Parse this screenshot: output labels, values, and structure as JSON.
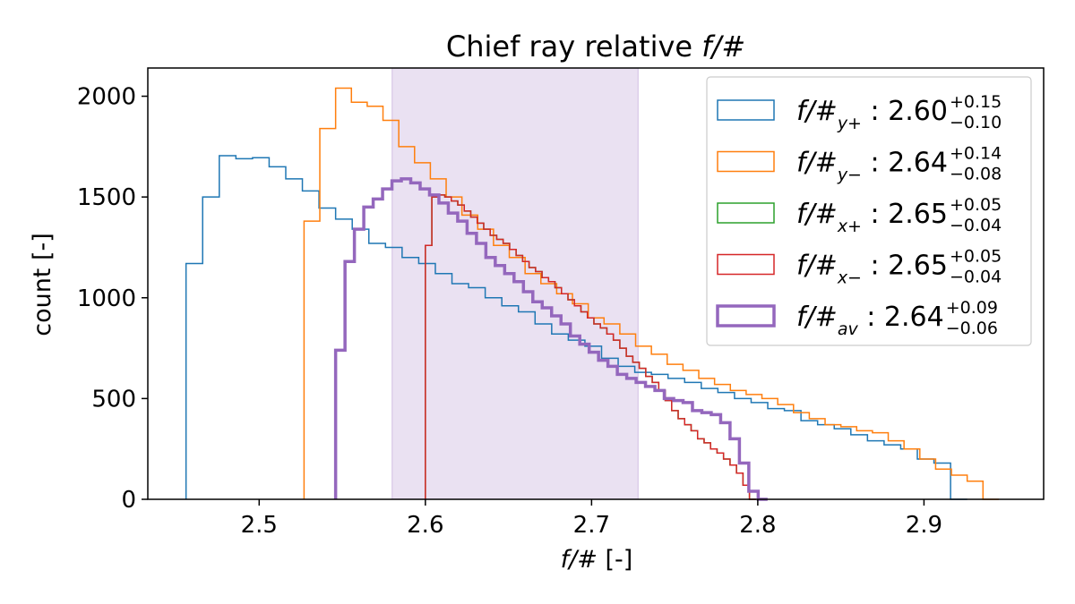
{
  "chart_data": {
    "type": "histogram",
    "title": "Chief ray relative f/#",
    "xlabel": "f/# [-]",
    "ylabel": "count [-]",
    "xlim": [
      2.433,
      2.972
    ],
    "ylim": [
      0,
      2140
    ],
    "xticks": [
      2.5,
      2.6,
      2.7,
      2.8,
      2.9
    ],
    "xtick_labels": [
      "2.5",
      "2.6",
      "2.7",
      "2.8",
      "2.9"
    ],
    "yticks": [
      0,
      500,
      1000,
      1500,
      2000
    ],
    "ytick_labels": [
      "0",
      "500",
      "1000",
      "1500",
      "2000"
    ],
    "grid": false,
    "legend_position": "top-right",
    "shaded_band": {
      "x0": 2.58,
      "x1": 2.728,
      "color": "#9467bd",
      "opacity": 0.2
    },
    "series": [
      {
        "name": "f/#y+",
        "base": "f/#",
        "sub": "y+",
        "value": "2.60",
        "plus": "+0.15",
        "minus": "−0.10",
        "color": "#1f77b4",
        "linewidth": 1.5,
        "bin_width": 0.01,
        "x_start": 2.456,
        "counts": [
          1170,
          1500,
          1705,
          1690,
          1695,
          1650,
          1590,
          1530,
          1445,
          1390,
          1340,
          1270,
          1250,
          1200,
          1170,
          1120,
          1070,
          1050,
          1000,
          960,
          930,
          870,
          820,
          790,
          760,
          700,
          660,
          630,
          620,
          600,
          580,
          550,
          530,
          500,
          480,
          450,
          440,
          390,
          370,
          350,
          320,
          290,
          270,
          250,
          200,
          180,
          0
        ]
      },
      {
        "name": "f/#y-",
        "base": "f/#",
        "sub": "y−",
        "value": "2.64",
        "plus": "+0.14",
        "minus": "−0.08",
        "color": "#ff7f0e",
        "linewidth": 1.5,
        "bin_width": 0.0095,
        "x_start": 2.527,
        "counts": [
          1380,
          1840,
          2040,
          1970,
          1950,
          1880,
          1750,
          1670,
          1590,
          1500,
          1410,
          1340,
          1260,
          1200,
          1120,
          1070,
          1020,
          970,
          900,
          870,
          820,
          760,
          720,
          670,
          640,
          600,
          570,
          540,
          520,
          500,
          470,
          430,
          400,
          370,
          360,
          340,
          330,
          290,
          250,
          200,
          150,
          120,
          90,
          0
        ]
      },
      {
        "name": "f/#x+",
        "base": "f/#",
        "sub": "x+",
        "value": "2.65",
        "plus": "+0.05",
        "minus": "−0.04",
        "color": "#2ca02c",
        "linewidth": 1.5,
        "bin_width": 0.0039,
        "x_start": 2.6,
        "counts": [
          1260,
          1500,
          1510,
          1500,
          1480,
          1460,
          1430,
          1400,
          1370,
          1340,
          1310,
          1290,
          1270,
          1240,
          1210,
          1180,
          1150,
          1130,
          1100,
          1080,
          1050,
          1020,
          990,
          960,
          930,
          900,
          870,
          850,
          820,
          790,
          750,
          710,
          680,
          650,
          610,
          580,
          540,
          490,
          440,
          400,
          370,
          340,
          300,
          280,
          250,
          230,
          200,
          170,
          130,
          70,
          0
        ]
      },
      {
        "name": "f/#x-",
        "base": "f/#",
        "sub": "x−",
        "value": "2.65",
        "plus": "+0.05",
        "minus": "−0.04",
        "color": "#d62728",
        "linewidth": 1.5,
        "bin_width": 0.0039,
        "x_start": 2.6,
        "counts": [
          1260,
          1500,
          1510,
          1500,
          1480,
          1460,
          1430,
          1400,
          1370,
          1340,
          1310,
          1290,
          1270,
          1240,
          1210,
          1180,
          1150,
          1130,
          1100,
          1080,
          1050,
          1020,
          990,
          960,
          930,
          900,
          870,
          850,
          820,
          790,
          750,
          710,
          680,
          650,
          610,
          580,
          540,
          490,
          440,
          400,
          370,
          340,
          300,
          280,
          250,
          230,
          200,
          170,
          130,
          70,
          0
        ]
      },
      {
        "name": "f/#av",
        "base": "f/#",
        "sub": "av",
        "value": "2.64",
        "plus": "+0.09",
        "minus": "−0.06",
        "color": "#9467bd",
        "linewidth": 3.5,
        "bin_width": 0.00565,
        "x_start": 2.546,
        "counts": [
          740,
          1180,
          1340,
          1450,
          1490,
          1540,
          1580,
          1590,
          1570,
          1540,
          1510,
          1470,
          1420,
          1380,
          1320,
          1270,
          1200,
          1160,
          1120,
          1080,
          1030,
          980,
          950,
          910,
          870,
          810,
          770,
          730,
          690,
          660,
          620,
          600,
          580,
          560,
          540,
          500,
          490,
          480,
          440,
          430,
          420,
          380,
          300,
          180,
          40,
          0
        ]
      }
    ]
  }
}
